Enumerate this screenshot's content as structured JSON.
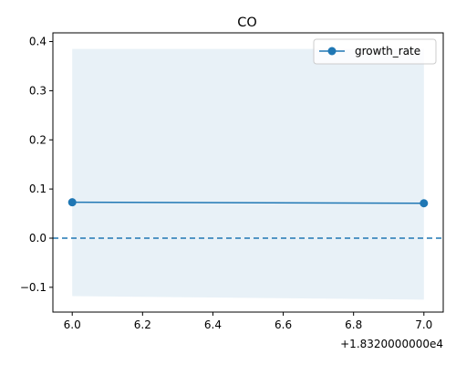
{
  "chart_data": {
    "type": "line",
    "title": "CO",
    "xlabel": "",
    "ylabel": "",
    "x_offset_label": "+1.8320000000e4",
    "x": [
      6.0,
      7.0
    ],
    "xlim": [
      5.945,
      7.055
    ],
    "ylim": [
      -0.1504,
      0.4177
    ],
    "xticks": [
      6.0,
      6.2,
      6.4,
      6.6,
      6.8,
      7.0
    ],
    "xtick_labels": [
      "6.0",
      "6.2",
      "6.4",
      "6.6",
      "6.8",
      "7.0"
    ],
    "yticks": [
      -0.1,
      0.0,
      0.1,
      0.2,
      0.3,
      0.4
    ],
    "ytick_labels": [
      "−0.1",
      "0.0",
      "0.1",
      "0.2",
      "0.3",
      "0.4"
    ],
    "series": [
      {
        "name": "growth_rate",
        "values": [
          0.073,
          0.071
        ],
        "color": "#1f77b4",
        "marker": "circle"
      }
    ],
    "band": {
      "lower": [
        -0.118,
        -0.125
      ],
      "upper": [
        0.385,
        0.385
      ],
      "color": "#1f77b4",
      "opacity": 0.1
    },
    "reference_line": {
      "y": 0.0,
      "style": "dashed",
      "color": "#1f77b4"
    },
    "legend": {
      "position": "top-right"
    },
    "grid": false
  }
}
